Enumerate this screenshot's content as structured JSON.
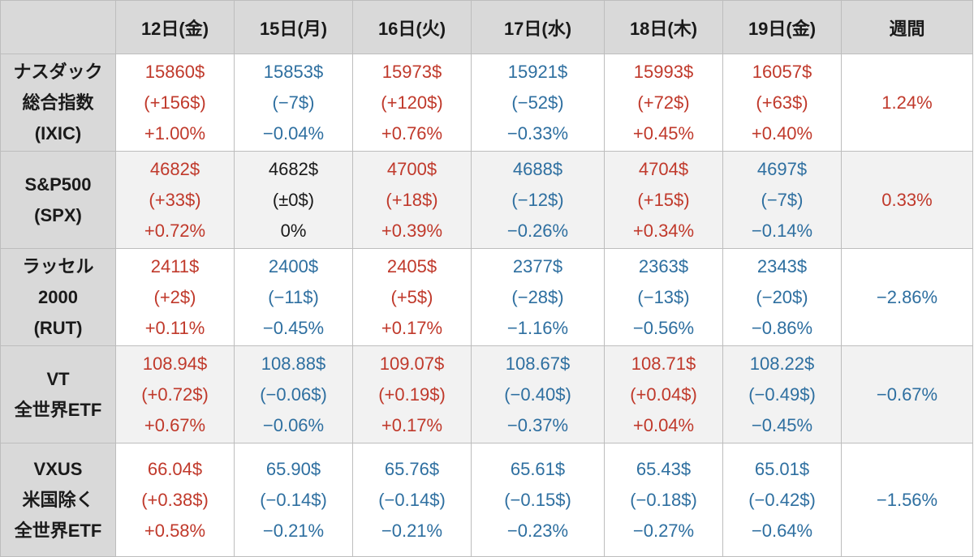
{
  "colors": {
    "up": "#c0392b",
    "down": "#2e6fa0",
    "flat": "#1a1a1a",
    "header_bg": "#d9d9d9"
  },
  "header": {
    "corner": "",
    "days": [
      "12日(金)",
      "15日(月)",
      "16日(火)",
      "17日(水)",
      "18日(木)",
      "19日(金)"
    ],
    "weekly": "週間"
  },
  "rows": [
    {
      "name": [
        "ナスダック",
        "総合指数",
        "(IXIC)"
      ],
      "cells": [
        {
          "price": "15860$",
          "change": "(+156$)",
          "pct": "+1.00%",
          "dir": "up"
        },
        {
          "price": "15853$",
          "change": "(−7$)",
          "pct": "−0.04%",
          "dir": "down"
        },
        {
          "price": "15973$",
          "change": "(+120$)",
          "pct": "+0.76%",
          "dir": "up"
        },
        {
          "price": "15921$",
          "change": "(−52$)",
          "pct": "−0.33%",
          "dir": "down"
        },
        {
          "price": "15993$",
          "change": "(+72$)",
          "pct": "+0.45%",
          "dir": "up"
        },
        {
          "price": "16057$",
          "change": "(+63$)",
          "pct": "+0.40%",
          "dir": "up"
        }
      ],
      "weekly": {
        "value": "1.24%",
        "dir": "up"
      }
    },
    {
      "name": [
        "S&P500",
        "(SPX)"
      ],
      "cells": [
        {
          "price": "4682$",
          "change": "(+33$)",
          "pct": "+0.72%",
          "dir": "up"
        },
        {
          "price": "4682$",
          "change": "(±0$)",
          "pct": "0%",
          "dir": "flat"
        },
        {
          "price": "4700$",
          "change": "(+18$)",
          "pct": "+0.39%",
          "dir": "up"
        },
        {
          "price": "4688$",
          "change": "(−12$)",
          "pct": "−0.26%",
          "dir": "down"
        },
        {
          "price": "4704$",
          "change": "(+15$)",
          "pct": "+0.34%",
          "dir": "up"
        },
        {
          "price": "4697$",
          "change": "(−7$)",
          "pct": "−0.14%",
          "dir": "down"
        }
      ],
      "weekly": {
        "value": "0.33%",
        "dir": "up"
      }
    },
    {
      "name": [
        "ラッセル",
        "2000",
        "(RUT)"
      ],
      "cells": [
        {
          "price": "2411$",
          "change": "(+2$)",
          "pct": "+0.11%",
          "dir": "up"
        },
        {
          "price": "2400$",
          "change": "(−11$)",
          "pct": "−0.45%",
          "dir": "down"
        },
        {
          "price": "2405$",
          "change": "(+5$)",
          "pct": "+0.17%",
          "dir": "up"
        },
        {
          "price": "2377$",
          "change": "(−28$)",
          "pct": "−1.16%",
          "dir": "down"
        },
        {
          "price": "2363$",
          "change": "(−13$)",
          "pct": "−0.56%",
          "dir": "down"
        },
        {
          "price": "2343$",
          "change": "(−20$)",
          "pct": "−0.86%",
          "dir": "down"
        }
      ],
      "weekly": {
        "value": "−2.86%",
        "dir": "down"
      }
    },
    {
      "name": [
        "VT",
        "全世界ETF"
      ],
      "cells": [
        {
          "price": "108.94$",
          "change": "(+0.72$)",
          "pct": "+0.67%",
          "dir": "up"
        },
        {
          "price": "108.88$",
          "change": "(−0.06$)",
          "pct": "−0.06%",
          "dir": "down"
        },
        {
          "price": "109.07$",
          "change": "(+0.19$)",
          "pct": "+0.17%",
          "dir": "up"
        },
        {
          "price": "108.67$",
          "change": "(−0.40$)",
          "pct": "−0.37%",
          "dir": "down"
        },
        {
          "price": "108.71$",
          "change": "(+0.04$)",
          "pct": "+0.04%",
          "dir": "up"
        },
        {
          "price": "108.22$",
          "change": "(−0.49$)",
          "pct": "−0.45%",
          "dir": "down"
        }
      ],
      "weekly": {
        "value": "−0.67%",
        "dir": "down"
      }
    },
    {
      "name": [
        "VXUS",
        "米国除く",
        "全世界ETF"
      ],
      "cells": [
        {
          "price": "66.04$",
          "change": "(+0.38$)",
          "pct": "+0.58%",
          "dir": "up"
        },
        {
          "price": "65.90$",
          "change": "(−0.14$)",
          "pct": "−0.21%",
          "dir": "down"
        },
        {
          "price": "65.76$",
          "change": "(−0.14$)",
          "pct": "−0.21%",
          "dir": "down"
        },
        {
          "price": "65.61$",
          "change": "(−0.15$)",
          "pct": "−0.23%",
          "dir": "down"
        },
        {
          "price": "65.43$",
          "change": "(−0.18$)",
          "pct": "−0.27%",
          "dir": "down"
        },
        {
          "price": "65.01$",
          "change": "(−0.42$)",
          "pct": "−0.64%",
          "dir": "down"
        }
      ],
      "weekly": {
        "value": "−1.56%",
        "dir": "down"
      }
    }
  ],
  "chart_data": {
    "type": "table",
    "columns": [
      "12日(金)",
      "15日(月)",
      "16日(火)",
      "17日(水)",
      "18日(木)",
      "19日(金)",
      "週間"
    ],
    "series": [
      {
        "name": "ナスダック総合指数(IXIC)",
        "prices": [
          15860,
          15853,
          15973,
          15921,
          15993,
          16057
        ],
        "changes": [
          156,
          -7,
          120,
          -52,
          72,
          63
        ],
        "pct": [
          1.0,
          -0.04,
          0.76,
          -0.33,
          0.45,
          0.4
        ],
        "weekly_pct": 1.24
      },
      {
        "name": "S&P500(SPX)",
        "prices": [
          4682,
          4682,
          4700,
          4688,
          4704,
          4697
        ],
        "changes": [
          33,
          0,
          18,
          -12,
          15,
          -7
        ],
        "pct": [
          0.72,
          0,
          0.39,
          -0.26,
          0.34,
          -0.14
        ],
        "weekly_pct": 0.33
      },
      {
        "name": "ラッセル2000(RUT)",
        "prices": [
          2411,
          2400,
          2405,
          2377,
          2363,
          2343
        ],
        "changes": [
          2,
          -11,
          5,
          -28,
          -13,
          -20
        ],
        "pct": [
          0.11,
          -0.45,
          0.17,
          -1.16,
          -0.56,
          -0.86
        ],
        "weekly_pct": -2.86
      },
      {
        "name": "VT全世界ETF",
        "prices": [
          108.94,
          108.88,
          109.07,
          108.67,
          108.71,
          108.22
        ],
        "changes": [
          0.72,
          -0.06,
          0.19,
          -0.4,
          0.04,
          -0.49
        ],
        "pct": [
          0.67,
          -0.06,
          0.17,
          -0.37,
          0.04,
          -0.45
        ],
        "weekly_pct": -0.67
      },
      {
        "name": "VXUS米国除く全世界ETF",
        "prices": [
          66.04,
          65.9,
          65.76,
          65.61,
          65.43,
          65.01
        ],
        "changes": [
          0.38,
          -0.14,
          -0.14,
          -0.15,
          -0.18,
          -0.42
        ],
        "pct": [
          0.58,
          -0.21,
          -0.21,
          -0.23,
          -0.27,
          -0.64
        ],
        "weekly_pct": -1.56
      }
    ]
  }
}
